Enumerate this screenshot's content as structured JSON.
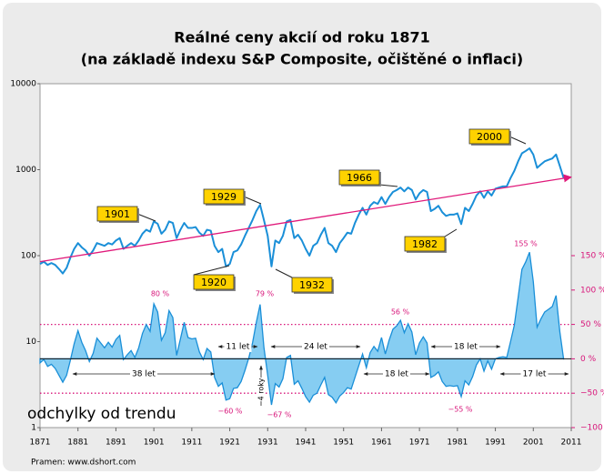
{
  "chart_data": {
    "type": "line",
    "title": [
      "Reálné ceny akcií od roku 1871",
      "(na základě indexu S&P Composite, očištěné o inflaci)"
    ],
    "ylog": true,
    "xlim": [
      1871,
      2011
    ],
    "xticks": [
      1871,
      1881,
      1891,
      1901,
      1911,
      1921,
      1931,
      1941,
      1951,
      1961,
      1971,
      1981,
      1991,
      2001,
      2011
    ],
    "ylim": [
      1,
      10000
    ],
    "yticks": [
      1,
      10,
      100,
      1000,
      10000
    ],
    "y2lim": [
      -100,
      400
    ],
    "y2ticks": [
      {
        "value": -100,
        "label": "−100 %"
      },
      {
        "value": -50,
        "label": "−50 %"
      },
      {
        "value": 0,
        "label": "0 %"
      },
      {
        "value": 50,
        "label": "50 %"
      },
      {
        "value": 100,
        "label": "100 %"
      },
      {
        "value": 150,
        "label": "150 %"
      }
    ],
    "reflines": [
      50,
      -50
    ],
    "refcolor": "#d8157a",
    "x": [
      1871,
      1872,
      1873,
      1874,
      1875,
      1876,
      1877,
      1878,
      1879,
      1880,
      1881,
      1882,
      1883,
      1884,
      1885,
      1886,
      1887,
      1888,
      1889,
      1890,
      1891,
      1892,
      1893,
      1894,
      1895,
      1896,
      1897,
      1898,
      1899,
      1900,
      1901,
      1902,
      1903,
      1904,
      1905,
      1906,
      1907,
      1908,
      1909,
      1910,
      1911,
      1912,
      1913,
      1914,
      1915,
      1916,
      1917,
      1918,
      1919,
      1920,
      1921,
      1922,
      1923,
      1924,
      1925,
      1926,
      1927,
      1928,
      1929,
      1930,
      1931,
      1932,
      1933,
      1934,
      1935,
      1936,
      1937,
      1938,
      1939,
      1940,
      1941,
      1942,
      1943,
      1944,
      1945,
      1946,
      1947,
      1948,
      1949,
      1950,
      1951,
      1952,
      1953,
      1954,
      1955,
      1956,
      1957,
      1958,
      1959,
      1960,
      1961,
      1962,
      1963,
      1964,
      1965,
      1966,
      1967,
      1968,
      1969,
      1970,
      1971,
      1972,
      1973,
      1974,
      1975,
      1976,
      1977,
      1978,
      1979,
      1980,
      1981,
      1982,
      1983,
      1984,
      1985,
      1986,
      1987,
      1988,
      1989,
      1990,
      1991,
      1992,
      1993,
      1994,
      1995,
      1996,
      1997,
      1998,
      1999,
      2000,
      2001,
      2002,
      2003,
      2004,
      2005,
      2006,
      2007,
      2008,
      2009
    ],
    "series": [
      {
        "type": "area",
        "axis": "y2",
        "color": "#1a8fd8",
        "fill": "#86cdf2",
        "values": [
          -6,
          -1,
          -11,
          -8,
          -14,
          -24,
          -34,
          -24,
          -2,
          22,
          41,
          24,
          12,
          -4,
          8,
          30,
          23,
          16,
          24,
          17,
          28,
          34,
          -1,
          6,
          12,
          2,
          16,
          37,
          50,
          40,
          80,
          68,
          27,
          38,
          70,
          60,
          5,
          29,
          53,
          31,
          29,
          30,
          10,
          -1,
          15,
          10,
          -27,
          -40,
          -35,
          -60,
          -58,
          -43,
          -42,
          -33,
          -17,
          1,
          23,
          53,
          79,
          17,
          -24,
          -67,
          -36,
          -41,
          -29,
          2,
          5,
          -37,
          -32,
          -43,
          -55,
          -63,
          -53,
          -50,
          -38,
          -27,
          -52,
          -56,
          -64,
          -54,
          -49,
          -42,
          -44,
          -27,
          -10,
          7,
          -13,
          9,
          18,
          11,
          31,
          7,
          27,
          43,
          48,
          56,
          38,
          51,
          39,
          6,
          23,
          32,
          23,
          -27,
          -24,
          -19,
          -33,
          -40,
          -39,
          -40,
          -39,
          -55,
          -32,
          -38,
          -26,
          -9,
          0,
          -18,
          -3,
          -15,
          0,
          2,
          3,
          2,
          25,
          49,
          89,
          130,
          141,
          155,
          112,
          46,
          58,
          68,
          72,
          76,
          92,
          39,
          -1
        ]
      },
      {
        "type": "line",
        "color": "#1a8fd8",
        "values": [
          80,
          85,
          78,
          82,
          78,
          70,
          62,
          72,
          95,
          120,
          140,
          125,
          115,
          100,
          115,
          140,
          135,
          130,
          140,
          135,
          150,
          160,
          120,
          130,
          140,
          130,
          150,
          180,
          200,
          190,
          250,
          235,
          180,
          200,
          250,
          240,
          160,
          200,
          240,
          210,
          210,
          215,
          185,
          170,
          200,
          195,
          130,
          110,
          120,
          75,
          80,
          110,
          115,
          135,
          170,
          210,
          260,
          330,
          390,
          260,
          170,
          75,
          150,
          140,
          170,
          250,
          260,
          160,
          175,
          150,
          120,
          100,
          130,
          140,
          175,
          210,
          140,
          130,
          110,
          140,
          160,
          185,
          180,
          240,
          300,
          360,
          300,
          380,
          420,
          400,
          480,
          400,
          480,
          550,
          580,
          620,
          560,
          620,
          580,
          450,
          530,
          580,
          550,
          330,
          350,
          380,
          320,
          290,
          300,
          300,
          310,
          233,
          360,
          330,
          400,
          500,
          560,
          470,
          560,
          500,
          600,
          620,
          640,
          640,
          800,
          970,
          1250,
          1550,
          1650,
          1770,
          1500,
          1050,
          1150,
          1250,
          1300,
          1350,
          1500,
          1100,
          800
        ]
      },
      {
        "type": "trend",
        "color": "#e0197a",
        "x": [
          1871,
          2011
        ],
        "values": [
          85,
          820
        ]
      }
    ],
    "callouts": [
      "1901",
      "1929",
      "1920",
      "1932",
      "1966",
      "1982",
      "2000"
    ],
    "deviation_labels": [
      "80 %",
      "79 %",
      "56 %",
      "155 %",
      "−60 %",
      "−67 %",
      "−55 %"
    ],
    "periods": [
      "38 let",
      "11 let",
      "24 let",
      "18 let",
      "18 let",
      "17 let"
    ],
    "duration_note": "4 roky",
    "panel_label": "odchylky od trendu",
    "source": "Pramen: www.dshort.com"
  }
}
